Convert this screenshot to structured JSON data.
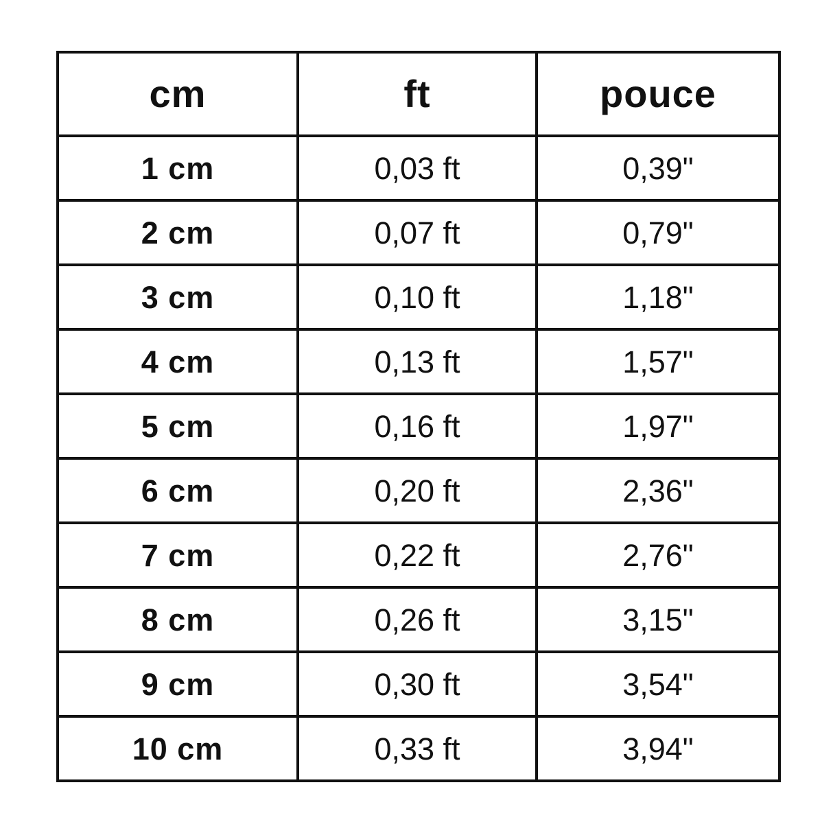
{
  "colors": {
    "background": "#ffffff",
    "border": "#111111",
    "text": "#111111"
  },
  "table": {
    "columns": [
      {
        "label": "cm"
      },
      {
        "label": "ft"
      },
      {
        "label": "pouce"
      }
    ],
    "rows": [
      [
        "1 cm",
        "0,03 ft",
        "0,39\""
      ],
      [
        "2 cm",
        "0,07 ft",
        "0,79\""
      ],
      [
        "3 cm",
        "0,10 ft",
        "1,18\""
      ],
      [
        "4 cm",
        "0,13 ft",
        "1,57\""
      ],
      [
        "5 cm",
        "0,16 ft",
        "1,97\""
      ],
      [
        "6 cm",
        "0,20 ft",
        "2,36\""
      ],
      [
        "7 cm",
        "0,22 ft",
        "2,76\""
      ],
      [
        "8 cm",
        "0,26 ft",
        "3,15\""
      ],
      [
        "9 cm",
        "0,30 ft",
        "3,54\""
      ],
      [
        "10 cm",
        "0,33 ft",
        "3,94\""
      ]
    ]
  },
  "chart_data": {
    "type": "table",
    "title": "",
    "columns": [
      "cm",
      "ft",
      "pouce"
    ],
    "cm_values": [
      1,
      2,
      3,
      4,
      5,
      6,
      7,
      8,
      9,
      10
    ],
    "ft_values": [
      0.03,
      0.07,
      0.1,
      0.13,
      0.16,
      0.2,
      0.22,
      0.26,
      0.3,
      0.33
    ],
    "pouce_values": [
      0.39,
      0.79,
      1.18,
      1.57,
      1.97,
      2.36,
      2.76,
      3.15,
      3.54,
      3.94
    ],
    "decimal_separator": ",",
    "notes": "cm column bold; ft values suffixed ' ft'; pouce values suffixed with double-quote inch mark"
  }
}
